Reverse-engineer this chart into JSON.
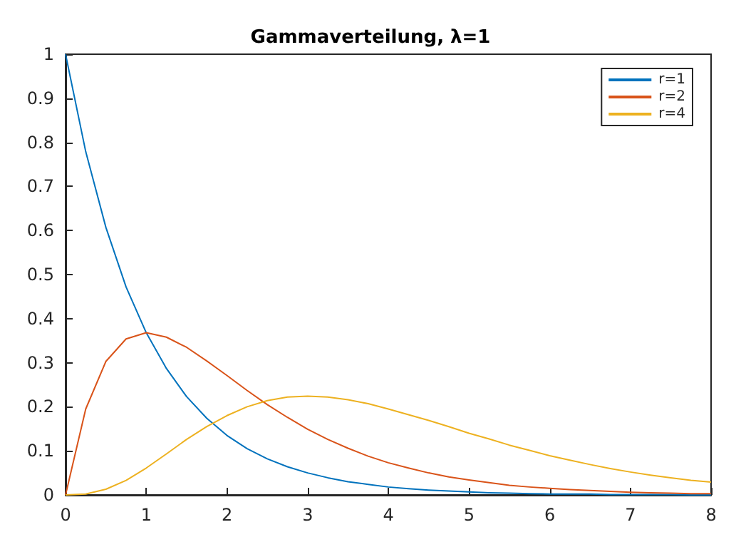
{
  "chart_data": {
    "type": "line",
    "title": "Gammaverteilung, λ=1",
    "x": [
      0,
      0.25,
      0.5,
      0.75,
      1,
      1.25,
      1.5,
      1.75,
      2,
      2.25,
      2.5,
      2.75,
      3,
      3.25,
      3.5,
      3.75,
      4,
      4.25,
      4.5,
      4.75,
      5,
      5.25,
      5.5,
      5.75,
      6,
      6.25,
      6.5,
      6.75,
      7,
      7.25,
      7.5,
      7.75,
      8
    ],
    "series": [
      {
        "name": "r=1",
        "color": "#0072bd",
        "values": [
          1,
          0.779,
          0.607,
          0.472,
          0.368,
          0.287,
          0.223,
          0.174,
          0.135,
          0.105,
          0.082,
          0.064,
          0.05,
          0.039,
          0.03,
          0.024,
          0.018,
          0.014,
          0.011,
          0.009,
          0.007,
          0.005,
          0.004,
          0.003,
          0.002,
          0.002,
          0.002,
          0.001,
          0.001,
          0.001,
          0.001,
          0,
          0
        ]
      },
      {
        "name": "r=2",
        "color": "#d95319",
        "values": [
          0,
          0.195,
          0.303,
          0.354,
          0.368,
          0.358,
          0.335,
          0.304,
          0.271,
          0.237,
          0.205,
          0.176,
          0.149,
          0.126,
          0.106,
          0.088,
          0.073,
          0.061,
          0.05,
          0.041,
          0.034,
          0.028,
          0.022,
          0.018,
          0.015,
          0.012,
          0.01,
          0.008,
          0.006,
          0.005,
          0.004,
          0.003,
          0.003
        ]
      },
      {
        "name": "r=4",
        "color": "#edb120",
        "values": [
          0,
          0.002,
          0.013,
          0.033,
          0.061,
          0.093,
          0.126,
          0.155,
          0.18,
          0.2,
          0.214,
          0.222,
          0.224,
          0.222,
          0.216,
          0.207,
          0.195,
          0.182,
          0.169,
          0.155,
          0.14,
          0.127,
          0.113,
          0.101,
          0.089,
          0.079,
          0.069,
          0.06,
          0.052,
          0.045,
          0.039,
          0.033,
          0.029
        ]
      }
    ],
    "xlim": [
      0,
      8
    ],
    "xticks": [
      0,
      1,
      2,
      3,
      4,
      5,
      6,
      7,
      8
    ],
    "ylim": [
      0,
      1
    ],
    "yticks": [
      0,
      0.1,
      0.2,
      0.3,
      0.4,
      0.5,
      0.6,
      0.7,
      0.8,
      0.9,
      1
    ],
    "grid": false,
    "legend": "top right",
    "marker": "none",
    "line_style": "solid"
  }
}
